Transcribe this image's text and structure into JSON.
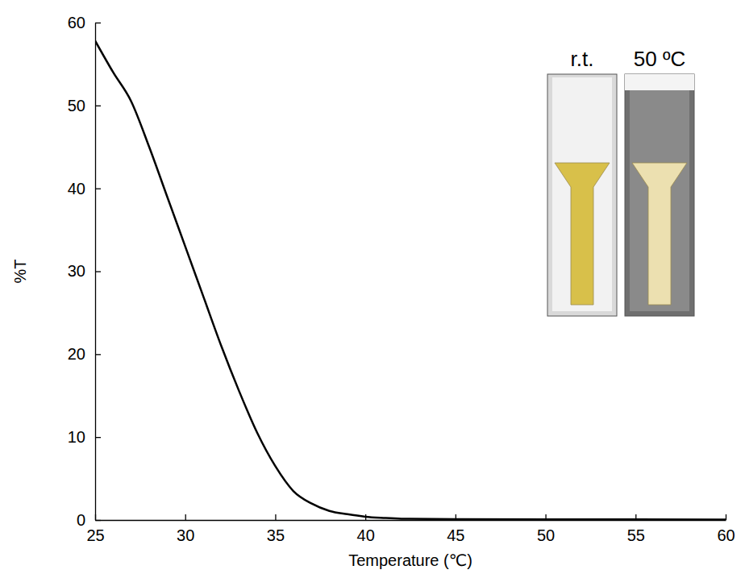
{
  "chart_data": {
    "type": "line",
    "xlabel": "Temperature (℃)",
    "ylabel": "%T",
    "annotations": [
      "r.t.",
      "50 ºC"
    ],
    "x": [
      25,
      26,
      27,
      28,
      29,
      30,
      31,
      32,
      33,
      34,
      35,
      36,
      37,
      38,
      39,
      40,
      41,
      42,
      45,
      50,
      55,
      60
    ],
    "values": [
      57.8,
      54,
      50.5,
      45,
      39,
      33,
      27,
      21,
      15.5,
      10.5,
      6.5,
      3.5,
      2,
      1.1,
      0.7,
      0.4,
      0.25,
      0.15,
      0.1,
      0.08,
      0.08,
      0.05
    ],
    "color": "#000000",
    "xlim": [
      25,
      60
    ],
    "ylim": [
      0,
      60
    ],
    "xticks": [
      25,
      30,
      35,
      40,
      45,
      50,
      55,
      60
    ],
    "yticks": [
      0,
      10,
      20,
      30,
      40,
      50,
      60
    ],
    "grid": false
  }
}
